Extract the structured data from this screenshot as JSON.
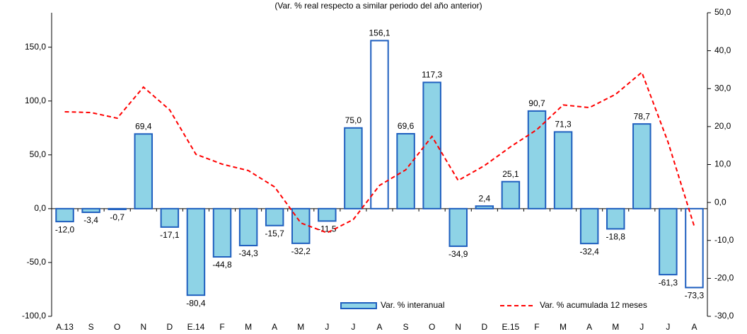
{
  "chart_data": {
    "type": "combo",
    "title": "(Var. % real respecto a similar periodo del año anterior)",
    "categories": [
      "A.13",
      "S",
      "O",
      "N",
      "D",
      "E.14",
      "F",
      "M",
      "A",
      "M",
      "J",
      "J",
      "A",
      "S",
      "O",
      "N",
      "D",
      "E.15",
      "F",
      "M",
      "A",
      "M",
      "J",
      "J",
      "A"
    ],
    "series": [
      {
        "name": "Var. % interanual",
        "type": "bar",
        "edge_color": "#1f5fbf",
        "colors": [
          "#8ed3e6",
          "#8ed3e6",
          "#8ed3e6",
          "#8ed3e6",
          "#8ed3e6",
          "#8ed3e6",
          "#8ed3e6",
          "#8ed3e6",
          "#8ed3e6",
          "#8ed3e6",
          "#8ed3e6",
          "#8ed3e6",
          "#ffffff",
          "#8ed3e6",
          "#8ed3e6",
          "#8ed3e6",
          "#8ed3e6",
          "#8ed3e6",
          "#8ed3e6",
          "#8ed3e6",
          "#8ed3e6",
          "#8ed3e6",
          "#8ed3e6",
          "#8ed3e6",
          "#ffffff"
        ],
        "values": [
          -12.0,
          -3.4,
          -0.7,
          69.4,
          -17.1,
          -80.4,
          -44.8,
          -34.3,
          -15.7,
          -32.2,
          -11.5,
          75.0,
          156.1,
          69.6,
          117.3,
          -34.9,
          2.4,
          25.1,
          90.7,
          71.3,
          -32.4,
          -18.8,
          78.7,
          -61.3,
          -73.3
        ],
        "value_labels": [
          "-12,0",
          "-3,4",
          "-0,7",
          "69,4",
          "-17,1",
          "-80,4",
          "-44,8",
          "-34,3",
          "-15,7",
          "-32,2",
          "-11,5",
          "75,0",
          "156,1",
          "69,6",
          "117,3",
          "-34,9",
          "2,4",
          "25,1",
          "90,7",
          "71,3",
          "-32,4",
          "-18,8",
          "78,7",
          "-61,3",
          "-73,3"
        ]
      },
      {
        "name": "Var. % acumulada 12 meses",
        "type": "line",
        "axis": "y2",
        "color": "#ff0000",
        "dashed": true,
        "values": [
          23.9,
          23.7,
          22.2,
          30.4,
          24.4,
          12.7,
          10.1,
          8.4,
          4.1,
          -5.4,
          -8.0,
          -4.5,
          4.5,
          8.6,
          17.4,
          5.8,
          9.7,
          14.7,
          19.2,
          25.7,
          25.0,
          28.5,
          34.3,
          15.9,
          -6.3
        ]
      }
    ],
    "ylim": [
      -100,
      182
    ],
    "yticks": [
      {
        "value": -100,
        "label": "-100,0"
      },
      {
        "value": -50,
        "label": "-50,0"
      },
      {
        "value": 0,
        "label": "0,0"
      },
      {
        "value": 50,
        "label": "50,0"
      },
      {
        "value": 100,
        "label": "100,0"
      },
      {
        "value": 150,
        "label": "150,0"
      }
    ],
    "y2lim": [
      -30,
      50
    ],
    "y2ticks": [
      {
        "value": -30,
        "label": "-30,0"
      },
      {
        "value": -20,
        "label": "-20,0"
      },
      {
        "value": -10,
        "label": "-10,0"
      },
      {
        "value": 0,
        "label": "0,0"
      },
      {
        "value": 10,
        "label": "10,0"
      },
      {
        "value": 20,
        "label": "20,0"
      },
      {
        "value": 30,
        "label": "30,0"
      },
      {
        "value": 40,
        "label": "40,0"
      },
      {
        "value": 50,
        "label": "50,0"
      }
    ],
    "grid": false,
    "legend": "bottom"
  }
}
